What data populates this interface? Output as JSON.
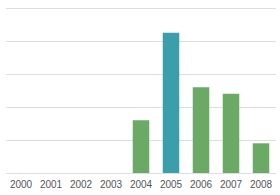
{
  "chart_data": {
    "type": "bar",
    "categories": [
      "2000",
      "2001",
      "2002",
      "2003",
      "2004",
      "2005",
      "2006",
      "2007",
      "2008"
    ],
    "values": [
      0,
      0,
      0,
      0,
      3.2,
      8.5,
      5.2,
      4.8,
      1.8
    ],
    "colors": [
      "#6aaa64",
      "#6aaa64",
      "#6aaa64",
      "#6aaa64",
      "#6aaa64",
      "#3a9faa",
      "#6aaa64",
      "#6aaa64",
      "#6aaa64"
    ],
    "ylim": [
      0,
      10
    ],
    "yticks": [
      0,
      2,
      4,
      6,
      8,
      10
    ],
    "grid": true,
    "tick_labels": "x"
  }
}
